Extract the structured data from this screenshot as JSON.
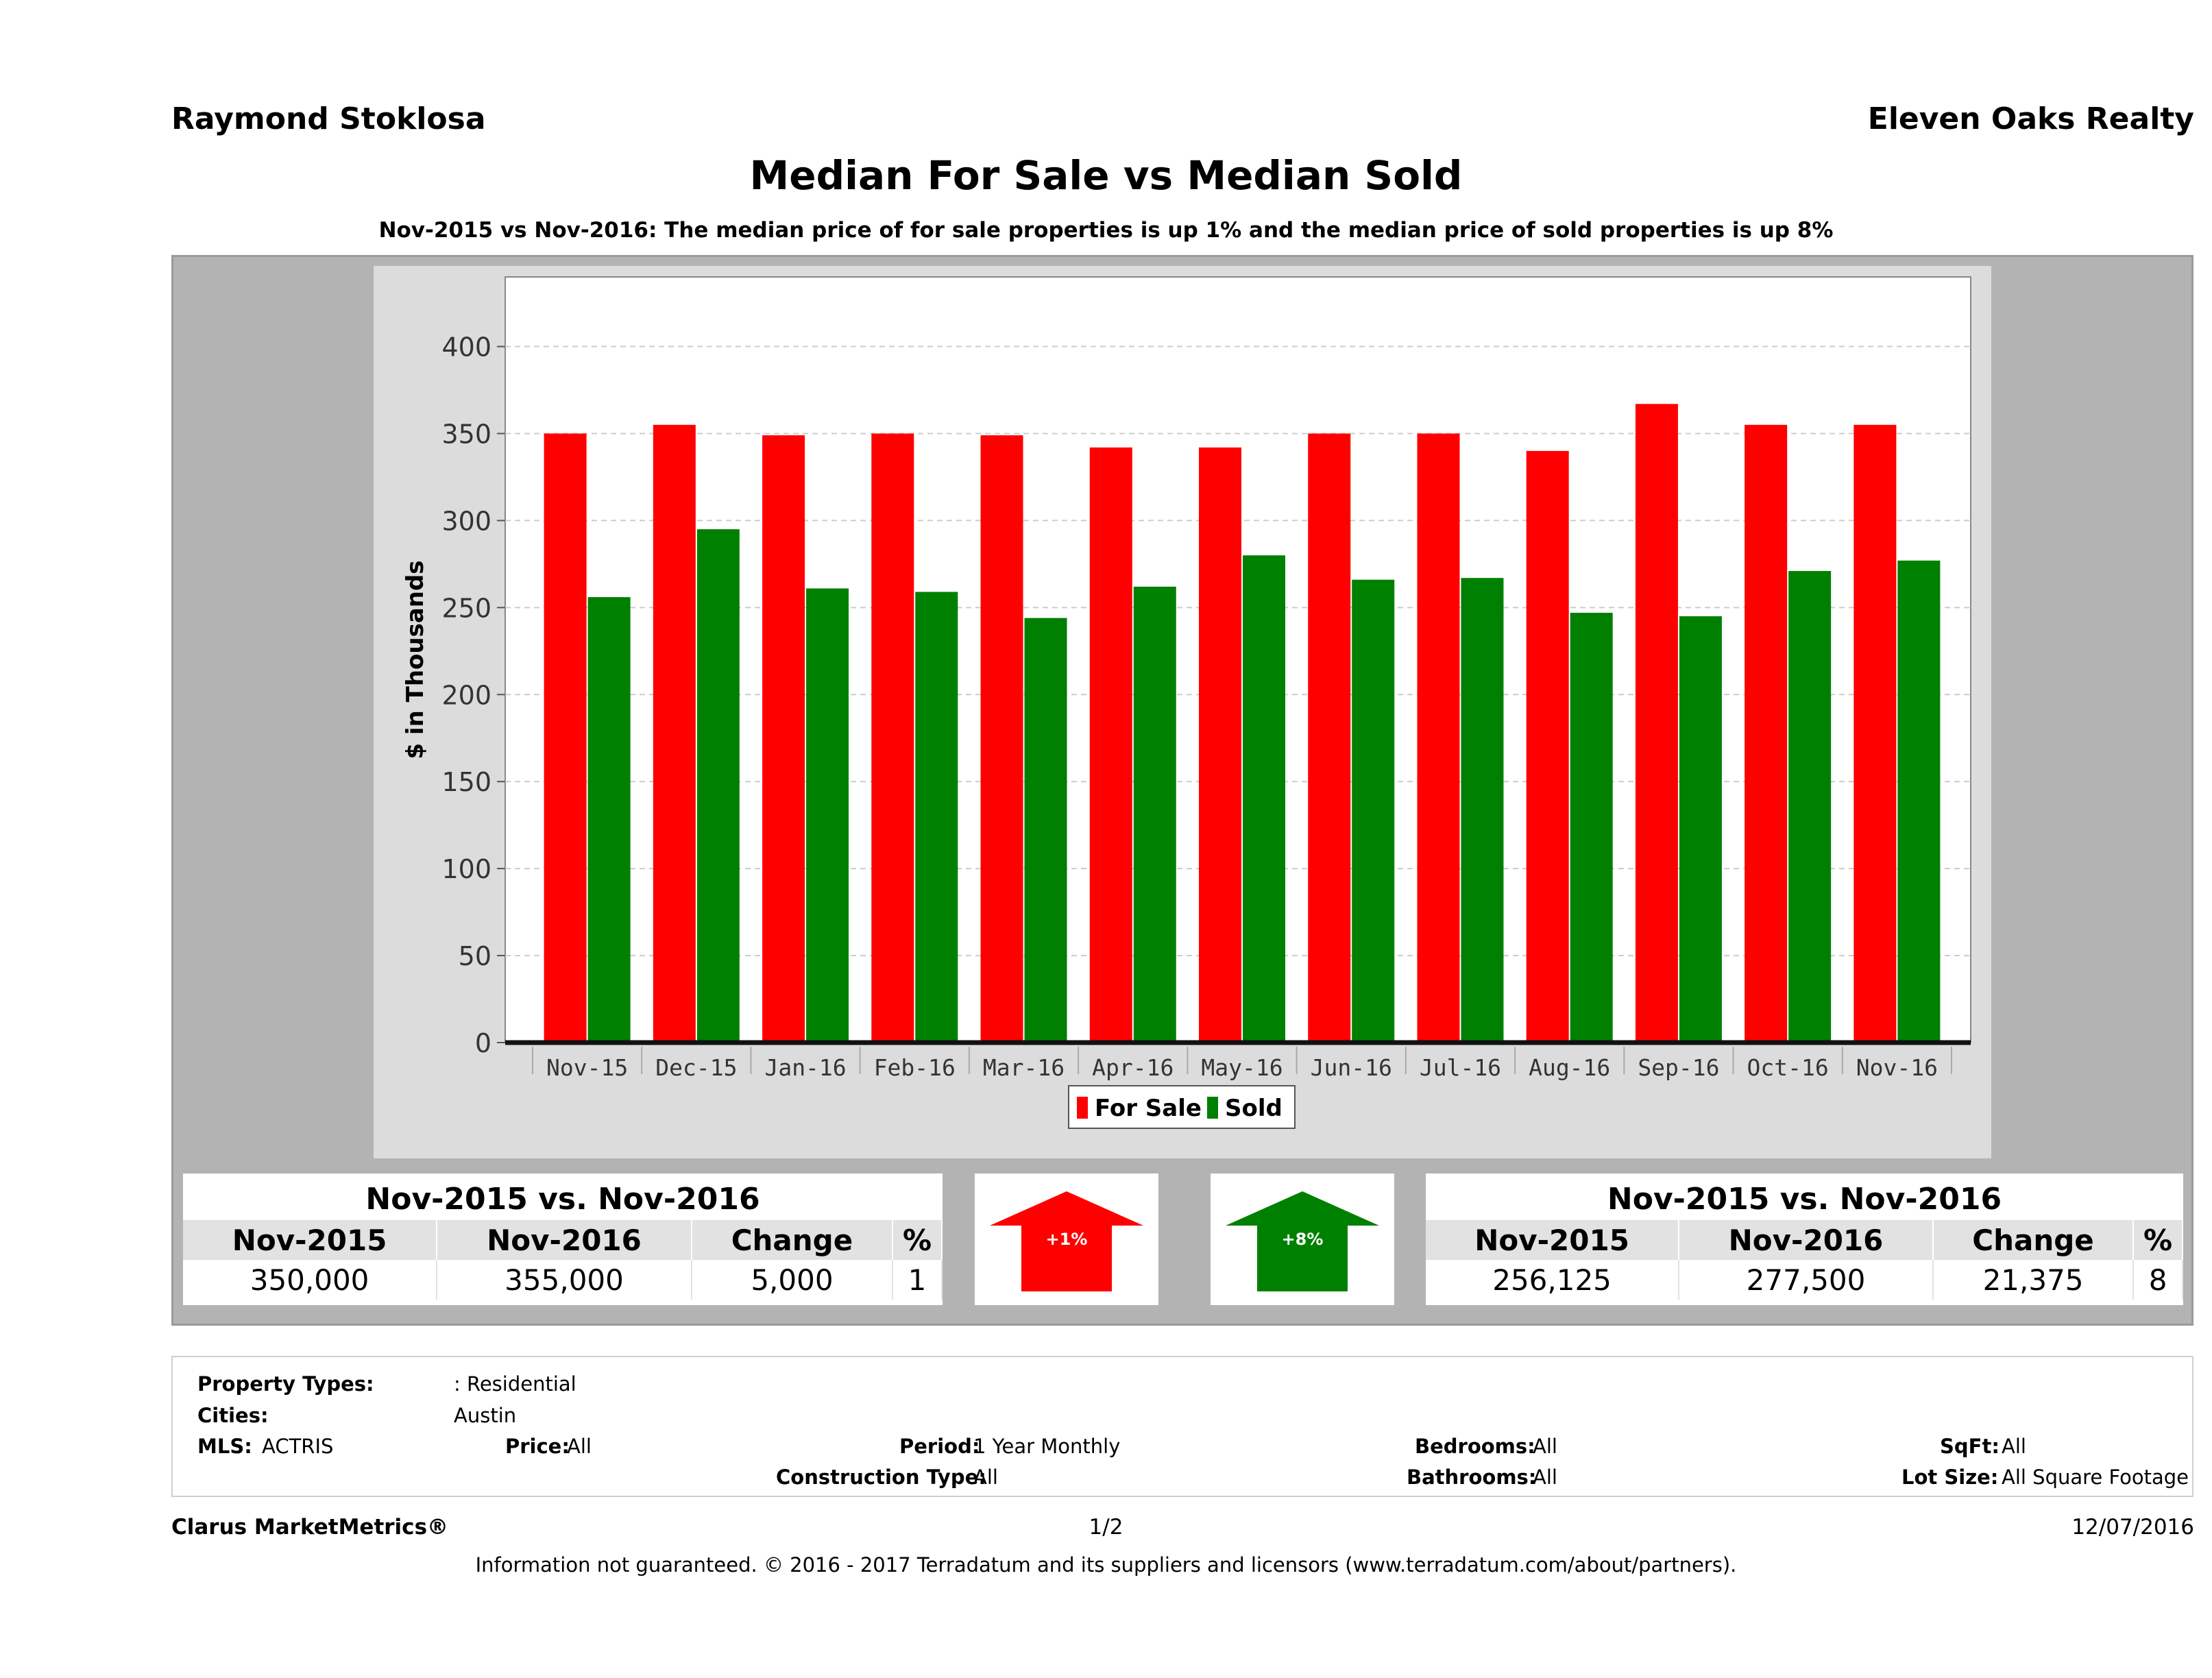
{
  "header": {
    "agent_name": "Raymond Stoklosa",
    "office_name": "Eleven Oaks Realty",
    "title": "Median For Sale vs Median Sold",
    "subtitle": "Nov-2015 vs Nov-2016: The median price of for sale properties is up 1% and the median price of sold properties is up 8%"
  },
  "chart_data": {
    "type": "bar",
    "title": "",
    "xlabel": "",
    "ylabel": "$ in Thousands",
    "ylim": [
      0,
      440
    ],
    "yticks": [
      0,
      50,
      100,
      150,
      200,
      250,
      300,
      350,
      400
    ],
    "categories": [
      "Nov-15",
      "Dec-15",
      "Jan-16",
      "Feb-16",
      "Mar-16",
      "Apr-16",
      "May-16",
      "Jun-16",
      "Jul-16",
      "Aug-16",
      "Sep-16",
      "Oct-16",
      "Nov-16"
    ],
    "series": [
      {
        "name": "For Sale",
        "color": "#ff0000",
        "values": [
          350,
          355,
          349,
          350,
          349,
          342,
          342,
          350,
          350,
          340,
          367,
          355,
          355
        ]
      },
      {
        "name": "Sold",
        "color": "#008000",
        "values": [
          256,
          295,
          261,
          259,
          244,
          262,
          280,
          266,
          267,
          247,
          245,
          271,
          277
        ]
      }
    ],
    "grid": true,
    "legend_position": "bottom-center"
  },
  "for_sale_summary": {
    "title": "Nov-2015 vs. Nov-2016",
    "headers": [
      "Nov-2015",
      "Nov-2016",
      "Change",
      "%"
    ],
    "values": [
      "350,000",
      "355,000",
      "5,000",
      "1"
    ],
    "arrow_label": "+1%",
    "arrow_color": "#ff0000"
  },
  "sold_summary": {
    "title": "Nov-2015 vs. Nov-2016",
    "headers": [
      "Nov-2015",
      "Nov-2016",
      "Change",
      "%"
    ],
    "values": [
      "256,125",
      "277,500",
      "21,375",
      "8"
    ],
    "arrow_label": "+8%",
    "arrow_color": "#008000"
  },
  "filters": {
    "property_types_label": "Property Types:",
    "property_types_value": ": Residential",
    "cities_label": "Cities:",
    "cities_value": "Austin",
    "mls_label": "MLS:",
    "mls_value": "ACTRIS",
    "price_label": "Price:",
    "price_value": "All",
    "period_label": "Period:",
    "period_value": "1 Year Monthly",
    "construction_label": "Construction Type:",
    "construction_value": "All",
    "bedrooms_label": "Bedrooms:",
    "bedrooms_value": "All",
    "bathrooms_label": "Bathrooms:",
    "bathrooms_value": "All",
    "sqft_label": "SqFt:",
    "sqft_value": "All",
    "lotsize_label": "Lot Size:",
    "lotsize_value": "All Square Footage"
  },
  "footer": {
    "brand": "Clarus MarketMetrics®",
    "page": "1/2",
    "date": "12/07/2016",
    "disclaimer": "Information not guaranteed. © 2016 - 2017 Terradatum and its suppliers and licensors (www.terradatum.com/about/partners)."
  }
}
